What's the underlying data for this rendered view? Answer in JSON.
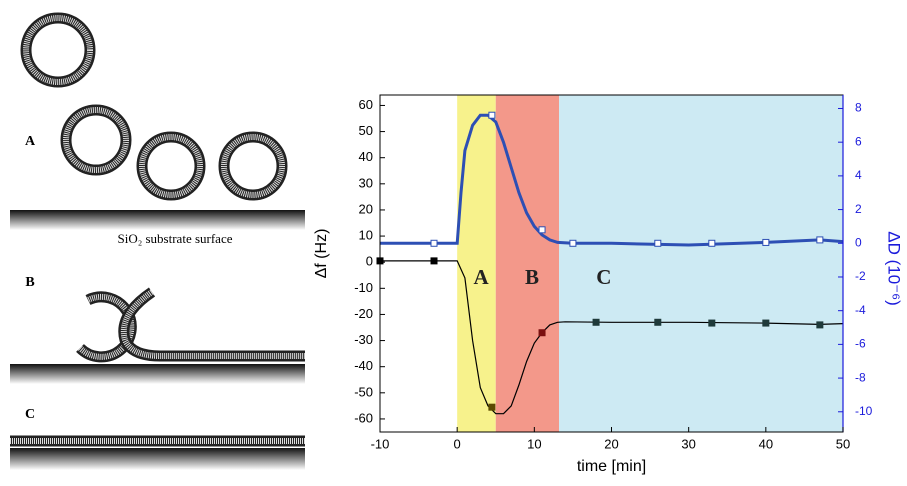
{
  "diagram": {
    "labels": [
      "A",
      "B",
      "C"
    ],
    "substrate_caption": "SiO₂ substrate surface"
  },
  "chart_data": {
    "type": "line",
    "xlabel": "time [min]",
    "ylabel": "Δf (Hz)",
    "y2label": "ΔD (10⁻⁶)",
    "xlim": [
      -10,
      50
    ],
    "xticks": [
      -10,
      0,
      10,
      20,
      30,
      40,
      50
    ],
    "ylim": [
      -65,
      64
    ],
    "yticks": [
      60,
      50,
      40,
      30,
      20,
      10,
      0,
      -10,
      -20,
      -30,
      -40,
      -50,
      -60
    ],
    "y2lim": [
      -11.2,
      8.8
    ],
    "y2ticks": [
      8,
      6,
      4,
      2,
      0,
      -2,
      -4,
      -6,
      -8,
      -10
    ],
    "y2color": "#1a1adb",
    "regions": [
      {
        "label": "A",
        "start": 0,
        "end": 5,
        "color": "#f7f28c",
        "label_at": 3.1
      },
      {
        "label": "B",
        "start": 5,
        "end": 13.2,
        "color": "#f3988a",
        "label_at": 9.7
      },
      {
        "label": "C",
        "start": 13.2,
        "end": 50,
        "color": "#cdeaf3",
        "label_at": 19
      }
    ],
    "series": [
      {
        "axis": "y",
        "color": "#000000",
        "x": [
          -10,
          -3,
          0,
          1,
          2,
          3,
          4,
          5,
          6,
          7,
          8,
          9,
          10,
          11,
          12,
          13,
          14,
          20,
          26,
          30,
          40,
          47,
          50
        ],
        "values": [
          0.5,
          0.5,
          0.5,
          -6,
          -30,
          -48,
          -55,
          -58,
          -58,
          -55,
          -47,
          -38,
          -31,
          -27,
          -24,
          -23,
          -22.8,
          -23,
          -23,
          -23,
          -23.3,
          -23.8,
          -23.5
        ],
        "marker_x": [
          -10,
          -3,
          4.5,
          11,
          18,
          26,
          33,
          40,
          47
        ],
        "marker_values": [
          0.5,
          0.5,
          -55.5,
          -27,
          -23,
          -23,
          -23.3,
          -23.3,
          -24
        ],
        "marker_colors": [
          "#000000",
          "#000000",
          "#5a4a00",
          "#7a1010",
          "#1f3a3a",
          "#1f3a3a",
          "#1f3a3a",
          "#1f3a3a",
          "#1f3a3a"
        ]
      },
      {
        "axis": "y2",
        "color": "#2d4fb4",
        "x": [
          -10,
          -3,
          0,
          0.5,
          1,
          2,
          3,
          4,
          5,
          6,
          7,
          8,
          9,
          10,
          11,
          12,
          13,
          15,
          20,
          30,
          40,
          47,
          50
        ],
        "values": [
          0,
          0,
          0,
          3,
          5.5,
          7,
          7.6,
          7.6,
          7.2,
          6,
          4.5,
          3,
          1.8,
          1,
          0.5,
          0.2,
          0.05,
          0,
          0,
          -0.1,
          0.05,
          0.2,
          0.1
        ],
        "marker_x": [
          -3,
          4.5,
          11,
          15,
          26,
          33,
          40,
          47
        ],
        "marker_values": [
          0,
          7.6,
          0.8,
          0,
          0,
          0,
          0.05,
          0.2
        ]
      }
    ]
  }
}
